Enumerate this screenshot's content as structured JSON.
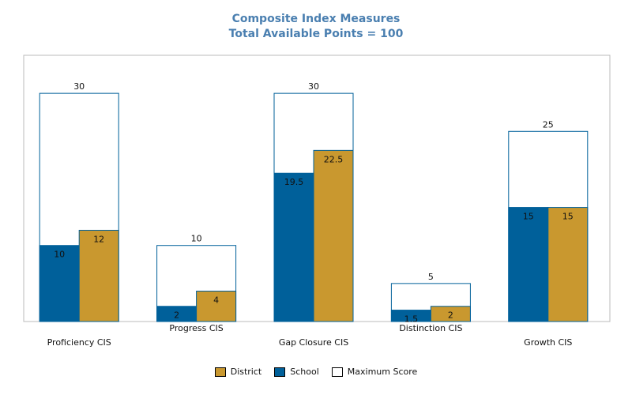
{
  "chart_data": {
    "type": "bar",
    "title": "Composite Index Measures",
    "subtitle": "Total Available Points = 100",
    "categories": [
      "Proficiency CIS",
      "Progress CIS",
      "Gap Closure CIS",
      "Distinction CIS",
      "Growth CIS"
    ],
    "series": [
      {
        "name": "School",
        "values": [
          10,
          2,
          19.5,
          1.5,
          15
        ],
        "labels": [
          "10",
          "2",
          "19.5",
          "1.5",
          "15"
        ],
        "color": "#00609a"
      },
      {
        "name": "District",
        "values": [
          12,
          4,
          22.5,
          2,
          15
        ],
        "labels": [
          "12",
          "4",
          "22.5",
          "2",
          "15"
        ],
        "color": "#c9982f"
      },
      {
        "name": "Maximum Score",
        "values": [
          30,
          10,
          30,
          5,
          25
        ],
        "labels": [
          "30",
          "10",
          "30",
          "5",
          "25"
        ],
        "color": "#ffffff"
      }
    ],
    "ylim": [
      0,
      35
    ],
    "grid": false,
    "legend_position": "bottom",
    "legend_order": [
      "District",
      "School",
      "Maximum Score"
    ]
  }
}
